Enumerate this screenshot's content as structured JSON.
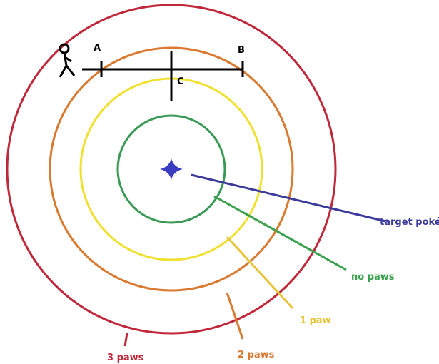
{
  "points": {
    "a": "A",
    "b": "B",
    "c": "C"
  },
  "labels": {
    "target": "target poké",
    "zone0": "no paws",
    "zone1": "1 paw",
    "zone2": "2 paws",
    "zone3": "3 paws"
  }
}
